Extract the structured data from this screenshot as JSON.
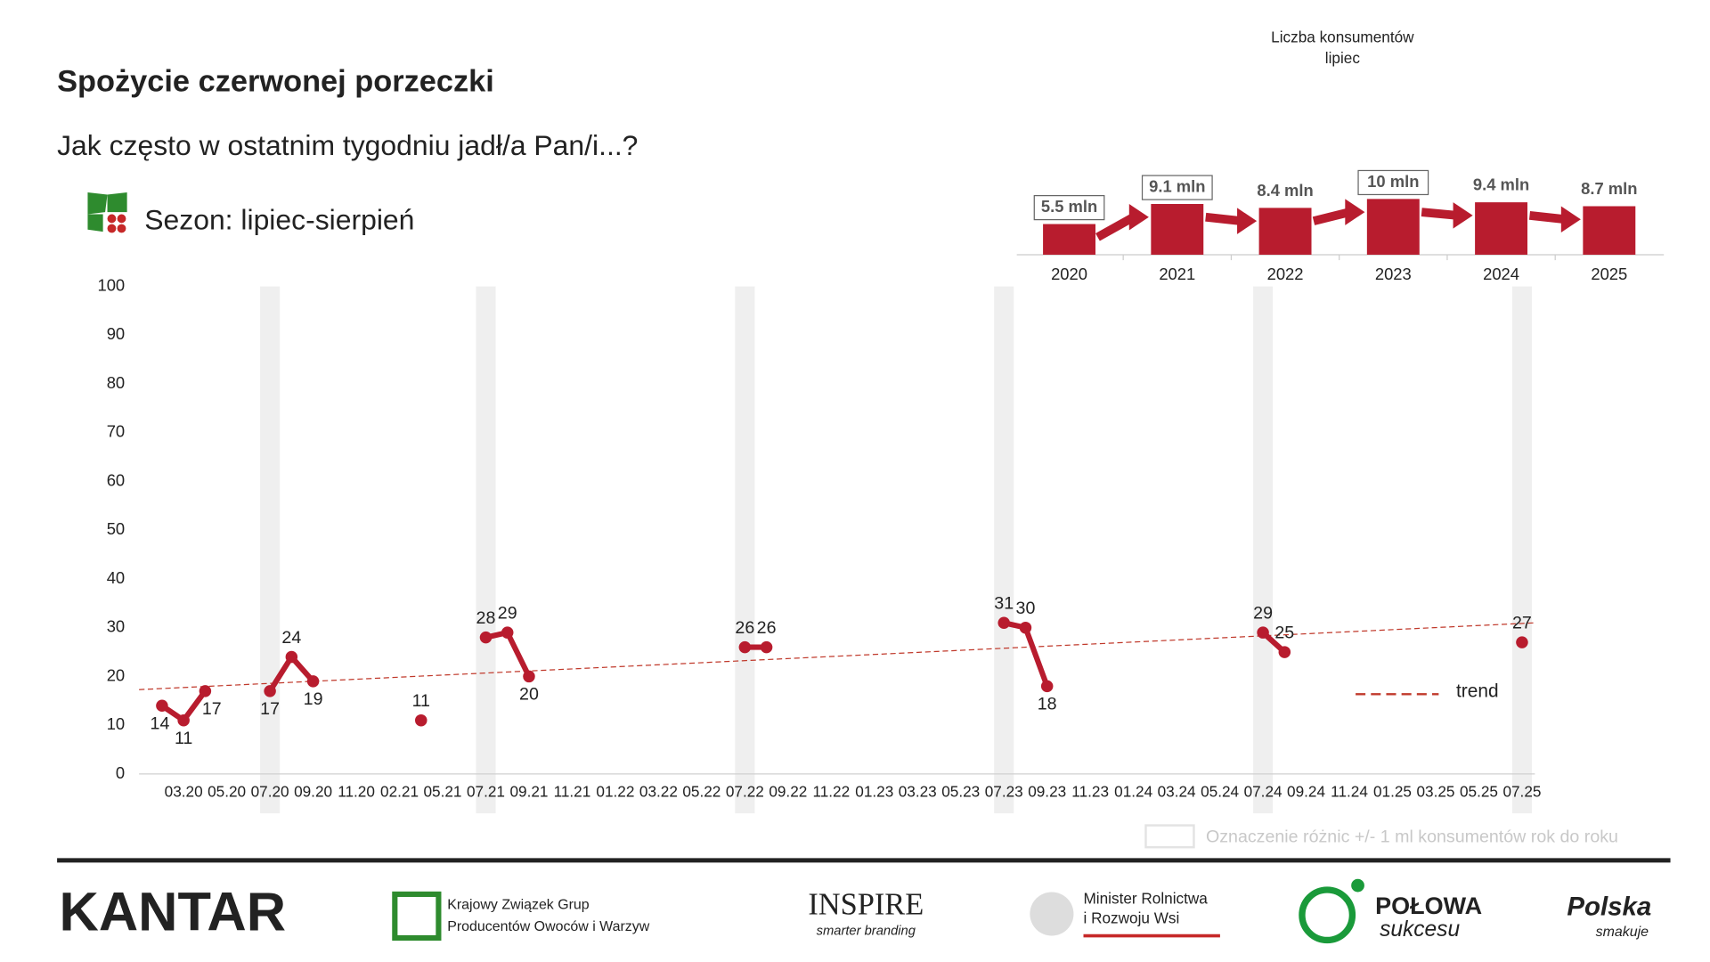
{
  "header": {
    "title": "Spożycie czerwonej porzeczki",
    "subtitle": "Jak często w ostatnim tygodniu jadł/a Pan/i...?",
    "season": "Sezon: lipiec-sierpień"
  },
  "chart_data": [
    {
      "type": "line",
      "color": "#b81c2e",
      "categories": [
        null,
        "03.20",
        null,
        "05.20",
        null,
        "07.20",
        null,
        "09.20",
        null,
        "11.20",
        null,
        "02.21",
        null,
        "05.21",
        null,
        "07.21",
        null,
        "09.21",
        null,
        "11.21",
        null,
        "01.22",
        null,
        "03.22",
        null,
        "05.22",
        null,
        "07.22",
        null,
        "09.22",
        null,
        "11.22",
        null,
        "01.23",
        null,
        "03.23",
        null,
        "05.23",
        null,
        "07.23",
        null,
        "09.23",
        null,
        "11.23",
        null,
        "01.24",
        null,
        "03.24",
        null,
        "05.24",
        null,
        "07.24",
        null,
        "09.24",
        null,
        "11.24",
        null,
        "01.25",
        null,
        "03.25",
        null,
        "05.25",
        null,
        "07.25"
      ],
      "values": [
        14,
        11,
        17,
        null,
        null,
        17,
        24,
        19,
        null,
        null,
        null,
        null,
        11,
        null,
        null,
        28,
        29,
        20,
        null,
        null,
        null,
        null,
        null,
        null,
        null,
        null,
        null,
        26,
        26,
        null,
        null,
        null,
        null,
        null,
        null,
        null,
        null,
        null,
        null,
        31,
        30,
        18,
        null,
        null,
        null,
        null,
        null,
        null,
        null,
        null,
        null,
        29,
        25,
        null,
        null,
        null,
        null,
        null,
        null,
        null,
        null,
        null,
        null,
        27
      ],
      "ylim": [
        0,
        100
      ],
      "yticks": [
        0,
        10,
        20,
        30,
        40,
        50,
        60,
        70,
        80,
        90,
        100
      ],
      "highlight_categories": [
        5,
        15,
        27,
        39,
        51,
        63
      ],
      "highlight_legend": "Oznaczenie różnic +/- 1 ml konsumentów rok do roku",
      "trend": {
        "name": "trend",
        "start": 17.3,
        "end": 31,
        "color": "#c0392b"
      }
    },
    {
      "type": "bar",
      "title": "Liczba konsumentów",
      "subtitle": "lipiec",
      "color": "#b81c2e",
      "categories": [
        "2020",
        "2021",
        "2022",
        "2023",
        "2024",
        "2025"
      ],
      "values": [
        5.5,
        9.1,
        8.4,
        10,
        9.4,
        8.7
      ],
      "value_labels": [
        "5.5 mln",
        "9.1 mln",
        "8.4 mln",
        "10 mln",
        "9.4 mln",
        "8.7 mln"
      ],
      "boxed": [
        true,
        true,
        false,
        true,
        false,
        false
      ],
      "ylim": [
        0,
        10
      ]
    }
  ],
  "footer": {
    "kantar": "KANTAR",
    "kzgpow_1": "Krajowy Związek Grup",
    "kzgpow_2": "Producentów Owoców i Warzyw",
    "inspire": "INSPIRE",
    "inspire_tag": "smarter branding",
    "minister_1": "Minister Rolnictwa",
    "minister_2": "i Rozwoju Wsi",
    "polowa_1": "POŁOWA",
    "polowa_2": "sukcesu",
    "polska_1": "Polska",
    "polska_2": "smakuje"
  }
}
